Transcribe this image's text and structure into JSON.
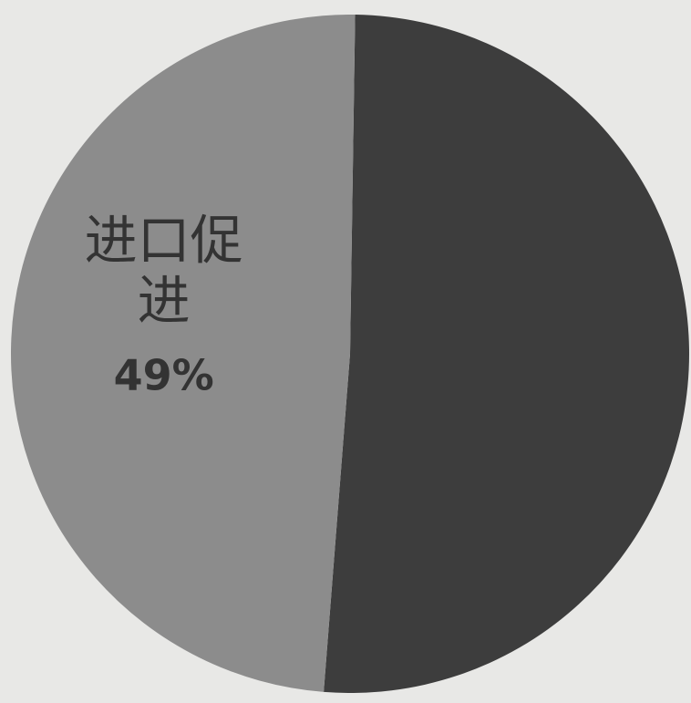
{
  "chart_data": {
    "type": "pie",
    "slices": [
      {
        "label": "",
        "value": 51,
        "color": "#3d3d3d"
      },
      {
        "label": "进口促进",
        "value": 49,
        "color": "#8c8c8c",
        "label_lines": [
          "进口促",
          "进"
        ],
        "percent_label": "49%"
      }
    ]
  }
}
